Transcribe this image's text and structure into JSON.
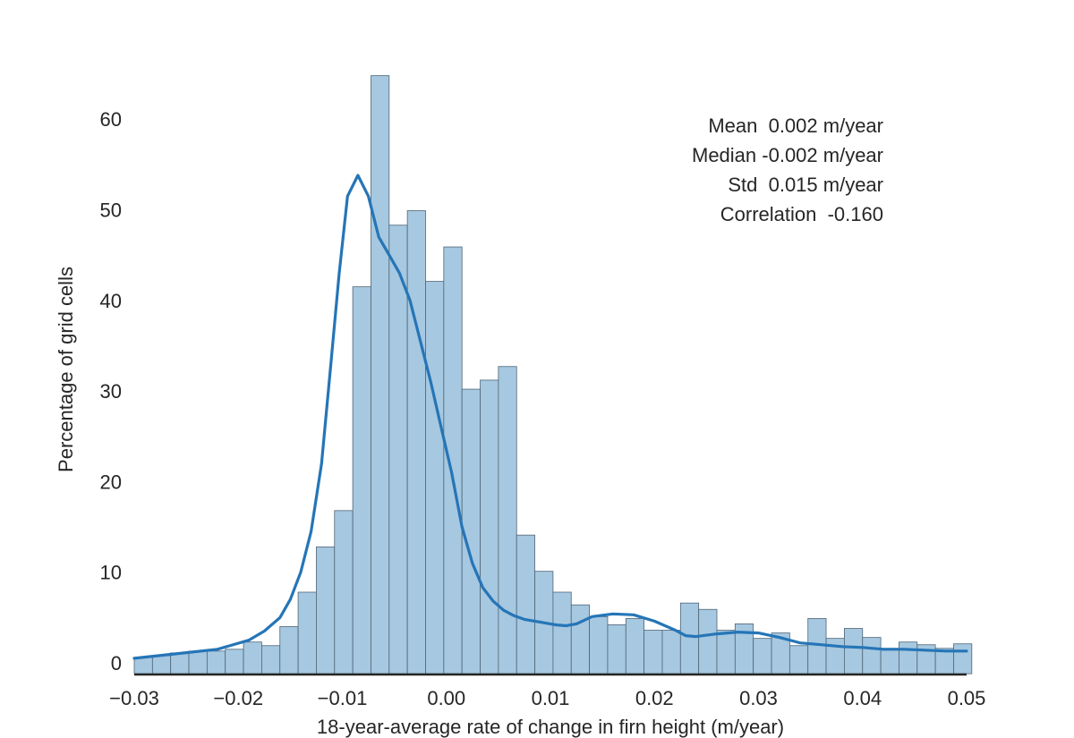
{
  "chart_data": {
    "type": "bar",
    "subtype": "histogram-with-kde",
    "xlabel": "18-year-average rate of change in firn height (m/year)",
    "ylabel": "Percentage of grid cells",
    "xlim": [
      -0.03,
      0.05
    ],
    "ylim": [
      -1.2,
      65
    ],
    "x_ticks": [
      -0.03,
      -0.02,
      -0.01,
      0.0,
      0.01,
      0.02,
      0.03,
      0.04,
      0.05
    ],
    "x_tick_labels": [
      "−0.03",
      "−0.02",
      "−0.01",
      "0.00",
      "0.01",
      "0.02",
      "0.03",
      "0.04",
      "0.05"
    ],
    "y_ticks": [
      0,
      10,
      20,
      30,
      40,
      50,
      60
    ],
    "y_tick_labels": [
      "0",
      "10",
      "20",
      "30",
      "40",
      "50",
      "60"
    ],
    "grid": false,
    "bin_width": 0.00175,
    "bin_start": -0.03,
    "bars": [
      0.6,
      0.8,
      1.1,
      1.3,
      1.3,
      1.5,
      2.3,
      1.9,
      4.0,
      7.8,
      12.8,
      16.8,
      41.5,
      64.8,
      48.3,
      49.9,
      42.1,
      45.9,
      30.2,
      31.2,
      32.7,
      14.1,
      10.1,
      7.8,
      6.4,
      5.1,
      4.2,
      4.9,
      3.6,
      3.6,
      6.6,
      5.9,
      3.6,
      4.3,
      2.7,
      3.3,
      1.9,
      4.9,
      2.7,
      3.8,
      2.8,
      1.6,
      2.3,
      2.0,
      1.6,
      2.1
    ],
    "kde": {
      "name": "",
      "x": [
        -0.03,
        -0.026,
        -0.022,
        -0.019,
        -0.0175,
        -0.016,
        -0.015,
        -0.014,
        -0.013,
        -0.012,
        -0.0111,
        -0.0103,
        -0.0095,
        -0.0085,
        -0.0075,
        -0.0065,
        -0.0055,
        -0.0045,
        -0.0035,
        -0.0025,
        -0.0015,
        -0.0005,
        0.0005,
        0.0015,
        0.0025,
        0.0035,
        0.0045,
        0.0055,
        0.0065,
        0.0075,
        0.0085,
        0.0095,
        0.0105,
        0.0115,
        0.0125,
        0.014,
        0.016,
        0.018,
        0.02,
        0.022,
        0.023,
        0.024,
        0.026,
        0.028,
        0.03,
        0.032,
        0.034,
        0.036,
        0.038,
        0.04,
        0.042,
        0.044,
        0.046,
        0.048,
        0.05
      ],
      "y": [
        0.5,
        1.0,
        1.5,
        2.5,
        3.5,
        5.0,
        7.0,
        10.0,
        14.5,
        22.0,
        33.0,
        43.0,
        51.5,
        53.8,
        51.5,
        47.0,
        45.0,
        43.0,
        40.0,
        35.5,
        31.0,
        26.0,
        21.0,
        15.0,
        11.0,
        8.3,
        6.8,
        5.8,
        5.2,
        4.8,
        4.6,
        4.4,
        4.2,
        4.1,
        4.3,
        5.1,
        5.4,
        5.3,
        4.6,
        3.6,
        3.0,
        2.9,
        3.2,
        3.4,
        3.3,
        2.8,
        2.2,
        2.0,
        1.8,
        1.7,
        1.5,
        1.5,
        1.4,
        1.3,
        1.3
      ]
    },
    "annotations": [
      "Mean  0.002 m/year",
      "Median -0.002 m/year",
      "Std  0.015 m/year",
      "Correlation  -0.160"
    ],
    "colors": {
      "bar_fill": "#a6c8e0",
      "bar_edge": "#4f6577",
      "kde_line": "#2575b7",
      "axis": "#262626"
    }
  }
}
